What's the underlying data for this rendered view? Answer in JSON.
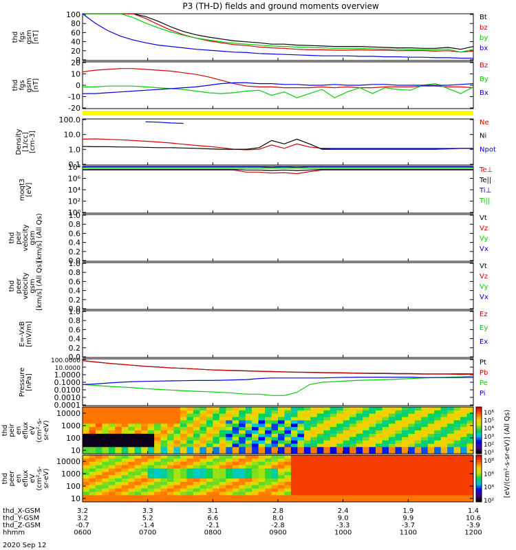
{
  "title": "P3 (TH-D) fields and ground moments overview",
  "date_label": "2020 Sep 12",
  "colors": {
    "black": "#000000",
    "red": "#d40000",
    "green": "#00d000",
    "blue": "#0000e0",
    "yellow": "#ffff00"
  },
  "chart_data": [
    {
      "type": "line",
      "panel": "fgs_mag",
      "ylabel": [
        "thd",
        "fgs",
        "gsm",
        "[nT]"
      ],
      "ylim": [
        0,
        100
      ],
      "yticks": [
        "100",
        "80",
        "60",
        "40",
        "20",
        "0"
      ],
      "legend": [
        "Bt",
        "bz",
        "by",
        "bx"
      ],
      "series": [
        {
          "name": "Bt",
          "color": "black",
          "values": [
            100,
            100,
            100,
            100,
            100,
            94,
            84,
            72,
            62,
            55,
            50,
            46,
            42,
            40,
            38,
            35,
            35,
            33,
            32,
            31,
            30,
            30,
            30,
            29,
            28,
            27,
            27,
            26,
            26,
            28,
            24,
            30
          ]
        },
        {
          "name": "bz",
          "color": "red",
          "values": [
            100,
            100,
            100,
            100,
            100,
            90,
            77,
            65,
            55,
            48,
            42,
            38,
            34,
            32,
            29,
            27,
            26,
            24,
            23,
            23,
            22,
            22,
            23,
            22,
            22,
            21,
            21,
            21,
            20,
            21,
            18,
            20
          ]
        },
        {
          "name": "by",
          "color": "green",
          "values": [
            100,
            100,
            100,
            100,
            92,
            80,
            70,
            61,
            54,
            48,
            44,
            40,
            37,
            35,
            33,
            31,
            30,
            29,
            28,
            27,
            26,
            26,
            26,
            25,
            24,
            24,
            23,
            23,
            23,
            24,
            18,
            24
          ]
        },
        {
          "name": "bx",
          "color": "blue",
          "values": [
            100,
            80,
            64,
            52,
            44,
            38,
            33,
            30,
            27,
            24,
            22,
            20,
            18,
            17,
            15,
            14,
            13,
            12,
            11,
            10,
            10,
            10,
            9,
            9,
            8,
            8,
            7,
            7,
            6,
            6,
            5,
            5
          ]
        }
      ]
    },
    {
      "type": "line",
      "panel": "fgs_comp",
      "ylabel": [
        "thd",
        "fgs",
        "gsm",
        "[nT]"
      ],
      "ylim": [
        -28,
        28
      ],
      "yticks": [
        "20",
        "10",
        "0",
        "-10",
        "-20"
      ],
      "legend": [
        "Bz",
        "By",
        "Bx"
      ],
      "series": [
        {
          "name": "Bz",
          "color": "red",
          "values": [
            16,
            18,
            19,
            20,
            20,
            19,
            18,
            17,
            15,
            13,
            10,
            6,
            2,
            -1,
            -2,
            -2,
            -3,
            -3,
            -3,
            -2,
            -3,
            -2,
            -3,
            -3,
            -2,
            -2,
            -2,
            -1,
            -1,
            -2,
            -2,
            -3
          ]
        },
        {
          "name": "By",
          "color": "green",
          "values": [
            -2,
            -2,
            -1,
            -1,
            -1,
            -2,
            -3,
            -4,
            -5,
            -7,
            -9,
            -10,
            -9,
            -7,
            -6,
            -12,
            -8,
            -15,
            -10,
            -5,
            -15,
            -8,
            -3,
            -10,
            -3,
            -5,
            -6,
            0,
            2,
            -4,
            -10,
            -2
          ]
        },
        {
          "name": "Bx",
          "color": "blue",
          "values": [
            -10,
            -10,
            -9,
            -8,
            -7,
            -6,
            -5,
            -4,
            -3,
            -2,
            0,
            2,
            3,
            3,
            2,
            2,
            1,
            1,
            0,
            0,
            1,
            0,
            0,
            1,
            1,
            0,
            0,
            0,
            0,
            0,
            1,
            2
          ]
        }
      ]
    },
    {
      "type": "line",
      "panel": "density",
      "ylabel": [
        "Density",
        "[1/cc]",
        "[cm-3]"
      ],
      "ylim_log10": [
        -1.7,
        2.4
      ],
      "yticks": [
        "100.0",
        "10.0",
        "1.0",
        "0.1"
      ],
      "legend": [
        "Ne",
        "Ni",
        "Npot"
      ],
      "series": [
        {
          "name": "Ne",
          "color": "red",
          "values": [
            4.0,
            4.2,
            3.8,
            3.5,
            3.0,
            2.6,
            2.2,
            1.8,
            1.4,
            1.1,
            0.9,
            0.7,
            0.5,
            0.45,
            0.5,
            1.2,
            0.6,
            1.5,
            0.8,
            0.6,
            0.6,
            0.6,
            0.6,
            0.6,
            0.6,
            0.6,
            0.6,
            0.6,
            0.6,
            0.6,
            0.6,
            0.6
          ]
        },
        {
          "name": "Ni",
          "color": "black",
          "values": [
            0.9,
            0.85,
            0.85,
            0.8,
            0.8,
            0.75,
            0.7,
            0.7,
            0.65,
            0.6,
            0.55,
            0.5,
            0.5,
            0.5,
            0.7,
            3,
            1.5,
            4,
            1.5,
            0.5,
            0.5,
            0.5,
            0.5,
            0.5,
            0.5,
            0.5,
            0.5,
            0.5,
            0.5,
            0.55,
            0.6,
            0.6
          ]
        },
        {
          "name": "Npot",
          "color": "blue",
          "values": [
            null,
            null,
            null,
            null,
            null,
            140,
            130,
            110,
            100,
            null,
            null,
            null,
            null,
            null,
            null,
            null,
            null,
            null,
            null,
            0.6,
            0.55,
            0.55,
            0.55,
            0.55,
            0.55,
            0.55,
            0.55,
            0.55,
            0.55,
            0.55,
            0.6,
            0.6
          ]
        }
      ]
    },
    {
      "type": "line",
      "panel": "temperature",
      "ylabel": [
        "moqt3",
        "[eV]"
      ],
      "ylim_log10": [
        -0.3,
        8.7
      ],
      "yticks": [
        "10⁸",
        "10⁶",
        "10⁴",
        "10²",
        "10⁰"
      ],
      "legend": [
        "Te⊥",
        "Te||",
        "Ti⊥",
        "Ti||"
      ],
      "series": [
        {
          "name": "Te⊥",
          "color": "red",
          "values": [
            8,
            8,
            8,
            8,
            8,
            8,
            8,
            8,
            8,
            8,
            8,
            8,
            8,
            7.6,
            7.6,
            7.4,
            7.5,
            7.3,
            7.7,
            8,
            8,
            8,
            8,
            8,
            8,
            8,
            8,
            8,
            8,
            8,
            8,
            8
          ]
        },
        {
          "name": "Te||",
          "color": "black",
          "values": [
            8.1,
            8.1,
            8.1,
            8.1,
            8.1,
            8.1,
            8.1,
            8.1,
            8.1,
            8.1,
            8.1,
            8.1,
            8.1,
            8.0,
            8.0,
            7.9,
            8.0,
            7.9,
            8.0,
            8.1,
            8.1,
            8.1,
            8.1,
            8.1,
            8.1,
            8.1,
            8.1,
            8.1,
            8.1,
            8.1,
            8.1,
            8.1
          ]
        },
        {
          "name": "Ti⊥",
          "color": "blue",
          "values": [
            8.6,
            8.6,
            8.6,
            8.6,
            8.6,
            8.6,
            8.6,
            8.6,
            8.6,
            8.6,
            8.6,
            8.6,
            8.6,
            8.6,
            8.6,
            8.5,
            8.6,
            8.5,
            8.6,
            8.6,
            8.6,
            8.6,
            8.6,
            8.6,
            8.6,
            8.6,
            8.6,
            8.6,
            8.6,
            8.6,
            8.6,
            8.6
          ]
        },
        {
          "name": "Ti||",
          "color": "green",
          "values": [
            8.4,
            8.4,
            8.4,
            8.4,
            8.4,
            8.4,
            8.4,
            8.4,
            8.4,
            8.4,
            8.4,
            8.4,
            8.4,
            8.4,
            8.4,
            8.4,
            8.4,
            8.4,
            8.4,
            8.4,
            8.4,
            8.4,
            8.4,
            8.4,
            8.4,
            8.4,
            8.4,
            8.4,
            8.4,
            8.4,
            8.4,
            8.4
          ]
        }
      ]
    },
    {
      "type": "line",
      "panel": "peir_velocity",
      "ylabel": [
        "thd",
        "peir",
        "velocity",
        "gsm",
        "[km/s] (All Qs)"
      ],
      "ylim": [
        0,
        1
      ],
      "yticks": [
        "1.0",
        "0.8",
        "0.6",
        "0.4",
        "0.2",
        "0.0"
      ],
      "legend": [
        "Vt",
        "Vz",
        "Vy",
        "Vx"
      ],
      "series": []
    },
    {
      "type": "line",
      "panel": "peer_velocity",
      "ylabel": [
        "thd",
        "peer",
        "velocity",
        "gsm",
        "[km/s] (All Qs)"
      ],
      "ylim": [
        0,
        1
      ],
      "yticks": [
        "1.0",
        "0.8",
        "0.6",
        "0.4",
        "0.2",
        "0.0"
      ],
      "legend": [
        "Vt",
        "Vz",
        "Vy",
        "Vx"
      ],
      "series": []
    },
    {
      "type": "line",
      "panel": "efield",
      "ylabel": [
        "E=-VxB",
        "[mV/m]"
      ],
      "ylim": [
        0,
        1
      ],
      "yticks": [
        "1.0",
        "0.8",
        "0.6",
        "0.4",
        "0.2",
        "0.0"
      ],
      "legend": [
        "Ez",
        "Ey",
        "Ex"
      ],
      "series": []
    },
    {
      "type": "line",
      "panel": "pressure",
      "ylabel": [
        "Pressure",
        "[nPa]"
      ],
      "ylim_log10": [
        -4,
        2
      ],
      "yticks": [
        "100.0000",
        "10.0000",
        "1.0000",
        "0.1000",
        "0.0100",
        "0.0010",
        "0.0001"
      ],
      "legend": [
        "Pt",
        "Pb",
        "Pe",
        "Pi"
      ],
      "series": [
        {
          "name": "Pt",
          "color": "black",
          "values": [
            60,
            40,
            28,
            20,
            15,
            11,
            9,
            7,
            6,
            5,
            4,
            3.6,
            3.2,
            2.9,
            2.6,
            2.4,
            2.2,
            2.0,
            1.9,
            1.8,
            1.7,
            1.6,
            1.5,
            1.4,
            1.4,
            1.3,
            1.3,
            1.2,
            1.2,
            1.2,
            1.2,
            1.2
          ]
        },
        {
          "name": "Pb",
          "color": "red",
          "values": [
            60,
            40,
            28,
            20,
            15,
            11,
            9,
            7,
            6,
            5,
            4,
            3.5,
            3.1,
            2.8,
            2.5,
            2.3,
            2.1,
            1.9,
            1.8,
            1.7,
            1.6,
            1.5,
            1.4,
            1.3,
            1.3,
            1.2,
            1.2,
            1.1,
            1.1,
            1.1,
            1.0,
            1.1
          ]
        },
        {
          "name": "Pe",
          "color": "green",
          "values": [
            0.05,
            0.04,
            0.03,
            0.025,
            0.02,
            0.015,
            0.012,
            0.01,
            0.008,
            0.007,
            0.006,
            0.005,
            0.004,
            0.003,
            0.003,
            0.002,
            0.002,
            0.005,
            0.05,
            0.1,
            0.12,
            0.15,
            0.18,
            0.2,
            0.22,
            0.25,
            0.3,
            0.35,
            0.4,
            0.45,
            0.5,
            0.6
          ]
        },
        {
          "name": "Pi",
          "color": "blue",
          "values": [
            0.05,
            0.06,
            0.08,
            0.1,
            0.12,
            0.13,
            0.14,
            0.15,
            0.16,
            0.17,
            0.17,
            0.18,
            0.2,
            0.22,
            0.3,
            0.35,
            0.35,
            0.35,
            0.35,
            0.35,
            0.4,
            0.42,
            0.45,
            0.45,
            0.45,
            0.45,
            0.45,
            0.4,
            0.4,
            0.4,
            0.4,
            0.42
          ]
        }
      ]
    },
    {
      "type": "heatmap",
      "panel": "peir_spectrogram",
      "ylabel": [
        "thd",
        "peir",
        "en",
        "eflux",
        "eV",
        "(cm²-s-",
        "sr-eV)"
      ],
      "yticks": [
        "10000",
        "1000",
        "100",
        "10"
      ],
      "colorbar": {
        "label": "[eV/(cm²-s-sr-eV)] (All Qs)",
        "ticks": [
          "10⁶",
          "10⁵",
          "10⁴",
          "10³",
          "10²",
          "10¹"
        ]
      }
    },
    {
      "type": "heatmap",
      "panel": "peer_spectrogram",
      "ylabel": [
        "thd",
        "peer",
        "en",
        "eflux",
        "eV",
        "(cm²-s-",
        "sr-eV)"
      ],
      "yticks": [
        "10000",
        "1000",
        "100",
        "10"
      ],
      "colorbar": {
        "label": "[eV/(cm²-s-sr-eV)] (All Qs)",
        "ticks": [
          "10⁸",
          "10⁶",
          "10⁴",
          "10²"
        ]
      }
    }
  ],
  "x_axis": {
    "rows": [
      {
        "label": "thd_X-GSM",
        "values": [
          "3.2",
          "3.3",
          "3.1",
          "2.8",
          "2.4",
          "1.9",
          "1.4"
        ]
      },
      {
        "label": "thd_Y-GSM",
        "values": [
          "3.2",
          "5.2",
          "6.6",
          "8.0",
          "9.0",
          "9.9",
          "10.6"
        ]
      },
      {
        "label": "thd_Z-GSM",
        "values": [
          "-0.7",
          "-1.4",
          "-2.1",
          "-2.8",
          "-3.3",
          "-3.7",
          "-3.9"
        ]
      },
      {
        "label": "hhmm",
        "values": [
          "0600",
          "0700",
          "0800",
          "0900",
          "1000",
          "1100",
          "1200"
        ]
      }
    ]
  }
}
